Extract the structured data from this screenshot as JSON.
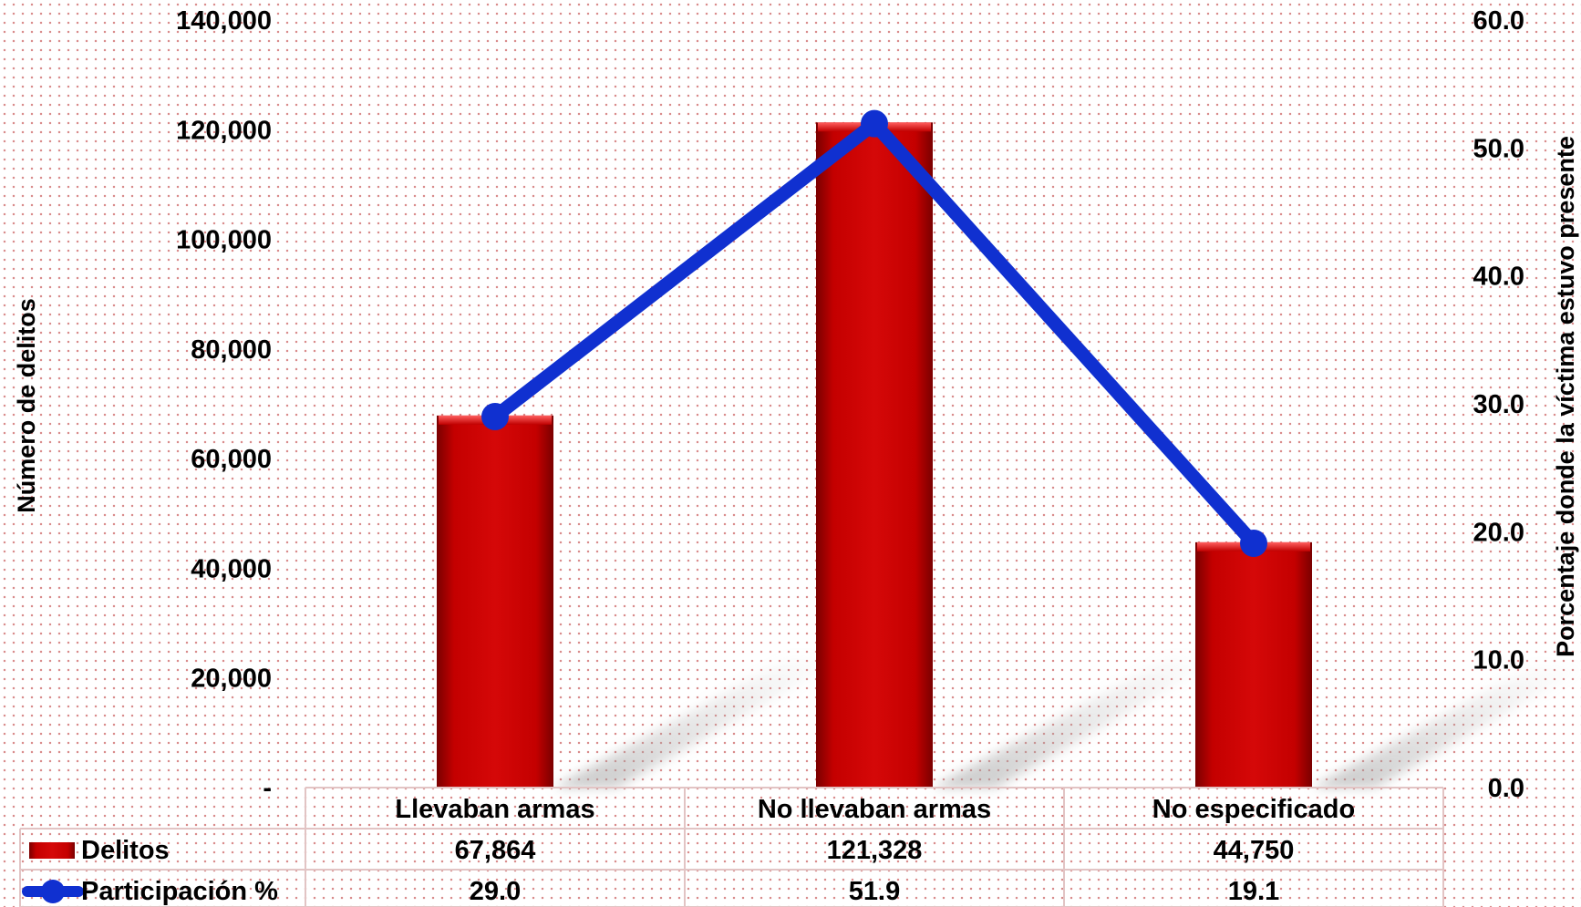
{
  "chart_data": {
    "type": "bar",
    "categories": [
      "Llevaban armas",
      "No llevaban armas",
      "No especificado"
    ],
    "series": [
      {
        "name": "Delitos",
        "type": "bar",
        "axis": "left",
        "values": [
          67864,
          121328,
          44750
        ],
        "color": "#cc0000"
      },
      {
        "name": "Participación %",
        "type": "line",
        "axis": "right",
        "values": [
          29.0,
          51.9,
          19.1
        ],
        "color": "#1030d0"
      }
    ],
    "y_left": {
      "label": "Número de delitos",
      "range": [
        0,
        140000
      ],
      "ticks": [
        "-",
        "20,000",
        "40,000",
        "60,000",
        "80,000",
        "100,000",
        "120,000",
        "140,000"
      ]
    },
    "y_right": {
      "label": "Porcentaje donde la víctima estuvo presente",
      "range": [
        0,
        60
      ],
      "ticks": [
        "0.0",
        "10.0",
        "20.0",
        "30.0",
        "40.0",
        "50.0",
        "60.0"
      ]
    },
    "data_table": {
      "rows": [
        {
          "label": "Delitos",
          "values": [
            "67,864",
            "121,328",
            "44,750"
          ]
        },
        {
          "label": "Participación %",
          "values": [
            "29.0",
            "51.9",
            "19.1"
          ]
        }
      ]
    },
    "grid": false,
    "legend": "data-table"
  }
}
